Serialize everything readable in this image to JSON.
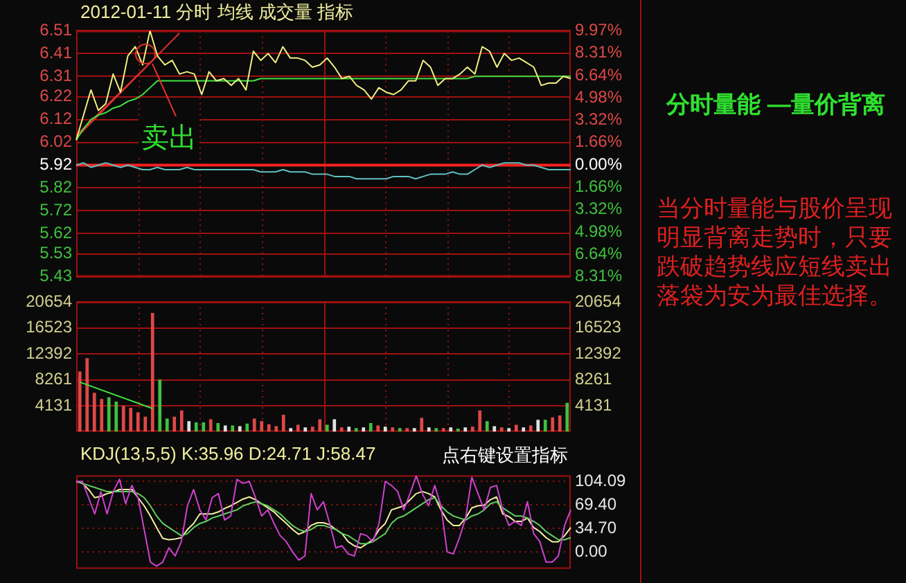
{
  "chart_data": [
    {
      "type": "line",
      "title": "2012-01-11 分时 均线 成交量 指标",
      "categories": [
        null,
        null,
        null,
        null,
        null,
        null,
        null,
        null,
        null,
        null,
        null,
        null,
        null,
        null,
        null,
        null,
        null,
        null,
        null,
        null,
        null,
        null,
        null,
        null,
        null,
        null,
        null,
        null,
        null,
        null,
        null,
        null,
        null,
        null,
        null,
        null,
        null,
        null,
        null,
        null,
        null,
        null,
        null,
        null,
        null,
        null,
        null,
        null,
        null,
        null,
        null,
        null,
        null,
        null,
        null,
        null,
        null,
        null,
        null,
        null,
        null,
        null,
        null,
        null,
        null,
        null,
        null,
        null
      ],
      "series": [
        {
          "color": "#f0f080",
          "values": [
            6.03,
            6.14,
            6.25,
            6.16,
            6.19,
            6.32,
            6.24,
            6.4,
            6.44,
            6.36,
            6.51,
            6.4,
            6.36,
            6.38,
            6.32,
            6.33,
            6.32,
            6.23,
            6.33,
            6.29,
            6.3,
            6.27,
            6.3,
            6.25,
            6.42,
            6.38,
            6.41,
            6.37,
            6.44,
            6.39,
            6.39,
            6.38,
            6.35,
            6.36,
            6.39,
            6.35,
            6.3,
            6.31,
            6.27,
            6.25,
            6.21,
            6.26,
            6.24,
            6.23,
            6.25,
            6.29,
            6.29,
            6.38,
            6.35,
            6.27,
            6.3,
            6.3,
            6.32,
            6.35,
            6.32,
            6.44,
            6.42,
            6.35,
            6.41,
            6.38,
            6.39,
            6.37,
            6.35,
            6.27,
            6.28,
            6.28,
            6.31,
            6.3
          ]
        },
        {
          "color": "#40e040",
          "values": [
            6.03,
            6.08,
            6.12,
            6.14,
            6.15,
            6.17,
            6.18,
            6.2,
            6.21,
            6.23,
            6.26,
            6.29,
            6.29,
            6.29,
            6.29,
            6.29,
            6.29,
            6.29,
            6.29,
            6.29,
            6.29,
            6.29,
            6.29,
            6.29,
            6.29,
            6.3,
            6.3,
            6.3,
            6.3,
            6.3,
            6.3,
            6.3,
            6.3,
            6.3,
            6.3,
            6.3,
            6.3,
            6.3,
            6.3,
            6.3,
            6.3,
            6.3,
            6.3,
            6.3,
            6.3,
            6.3,
            6.3,
            6.3,
            6.3,
            6.3,
            6.3,
            6.3,
            6.3,
            6.3,
            6.31,
            6.31,
            6.31,
            6.31,
            6.31,
            6.31,
            6.31,
            6.31,
            6.31,
            6.31,
            6.31,
            6.31,
            6.31,
            6.31
          ]
        },
        {
          "color": "#60c0c0",
          "values": [
            5.92,
            5.93,
            5.91,
            5.92,
            5.93,
            5.92,
            5.91,
            5.92,
            5.91,
            5.9,
            5.9,
            5.91,
            5.9,
            5.9,
            5.9,
            5.91,
            5.9,
            5.9,
            5.9,
            5.9,
            5.9,
            5.9,
            5.9,
            5.9,
            5.9,
            5.89,
            5.89,
            5.89,
            5.9,
            5.89,
            5.89,
            5.89,
            5.88,
            5.88,
            5.88,
            5.87,
            5.87,
            5.87,
            5.86,
            5.86,
            5.86,
            5.86,
            5.86,
            5.87,
            5.87,
            5.87,
            5.86,
            5.87,
            5.88,
            5.88,
            5.88,
            5.89,
            5.88,
            5.88,
            5.9,
            5.92,
            5.91,
            5.92,
            5.93,
            5.93,
            5.93,
            5.92,
            5.92,
            5.91,
            5.9,
            5.9,
            5.9,
            5.9
          ]
        },
        {
          "color": "#e03030",
          "values": [
            6.04,
            null,
            null,
            null,
            null,
            null,
            null,
            null,
            null,
            null,
            null,
            null,
            null,
            null,
            6.5,
            null,
            null,
            null,
            null,
            null,
            null,
            null,
            null,
            null,
            null,
            null,
            null,
            null,
            null,
            null,
            null,
            null,
            null,
            null,
            null,
            null,
            null,
            null,
            null,
            null,
            null,
            null,
            null,
            null,
            null,
            null,
            null,
            null,
            null,
            null,
            null,
            null,
            null,
            null,
            null,
            null,
            null,
            null,
            null,
            null,
            null,
            null,
            null,
            null,
            null,
            null,
            null,
            null
          ]
        },
        {
          "color": "#e03030",
          "values": [
            6.05,
            null,
            null,
            null,
            null,
            null,
            null,
            null,
            null,
            null,
            null,
            6.4,
            null,
            null,
            null,
            null,
            null,
            null,
            null,
            null,
            null,
            null,
            null,
            null,
            null,
            null,
            null,
            null,
            null,
            null,
            null,
            null,
            null,
            null,
            null,
            null,
            null,
            null,
            null,
            null,
            null,
            null,
            null,
            null,
            null,
            null,
            null,
            null,
            null,
            null,
            null,
            null,
            null,
            null,
            null,
            null,
            null,
            null,
            null,
            null,
            null,
            null,
            null,
            null,
            null,
            null,
            null,
            null
          ]
        }
      ],
      "ylim": [
        5.43,
        6.51
      ],
      "yticks": [
        6.51,
        6.41,
        6.31,
        6.22,
        6.12,
        6.02,
        5.92,
        5.82,
        5.72,
        5.62,
        5.53,
        5.43
      ],
      "y2lim": [
        -8.31,
        9.97
      ],
      "y2ticks": [
        {
          "value": 9.97,
          "label": "9.97%"
        },
        {
          "value": 8.31,
          "label": "8.31%"
        },
        {
          "value": 6.64,
          "label": "6.64%"
        },
        {
          "value": 4.98,
          "label": "4.98%"
        },
        {
          "value": 3.32,
          "label": "3.32%"
        },
        {
          "value": 1.66,
          "label": "1.66%"
        },
        {
          "value": 0,
          "label": "0.00%"
        },
        {
          "value": -1.66,
          "label": "1.66%"
        },
        {
          "value": -3.32,
          "label": "3.32%"
        },
        {
          "value": -4.98,
          "label": "4.98%"
        },
        {
          "value": -6.64,
          "label": "6.64%"
        },
        {
          "value": -8.31,
          "label": "8.31%"
        }
      ],
      "grid": true,
      "ref_lines": [
        {
          "axis": "y",
          "value": 5.92,
          "color": "#ff2020"
        }
      ],
      "annotations": [
        "卖出"
      ]
    },
    {
      "type": "bar",
      "categories": [
        null,
        null,
        null,
        null,
        null,
        null,
        null,
        null,
        null,
        null,
        null,
        null,
        null,
        null,
        null,
        null,
        null,
        null,
        null,
        null,
        null,
        null,
        null,
        null,
        null,
        null,
        null,
        null,
        null,
        null,
        null,
        null,
        null,
        null,
        null,
        null,
        null,
        null,
        null,
        null,
        null,
        null,
        null,
        null,
        null,
        null,
        null,
        null,
        null,
        null,
        null,
        null,
        null,
        null,
        null,
        null,
        null,
        null,
        null,
        null,
        null,
        null,
        null,
        null,
        null,
        null,
        null,
        null
      ],
      "series": [
        {
          "type": "bar",
          "values": [
            9600,
            11700,
            6200,
            5200,
            5500,
            4800,
            4100,
            3800,
            3100,
            2400,
            18900,
            8300,
            2100,
            2400,
            3400,
            1700,
            1500,
            1500,
            2000,
            1400,
            1000,
            1000,
            900,
            1300,
            2100,
            1700,
            1200,
            900,
            2700,
            600,
            1100,
            700,
            800,
            2000,
            1100,
            2000,
            700,
            800,
            600,
            700,
            1400,
            1000,
            800,
            700,
            600,
            600,
            600,
            2200,
            700,
            600,
            600,
            700,
            500,
            700,
            800,
            3400,
            1700,
            900,
            700,
            600,
            1100,
            700,
            1000,
            1900,
            1900,
            2300,
            2600,
            4600
          ],
          "colors": [
            "#e04848",
            "#e04848",
            "#e04848",
            "#e04848",
            "#40c040",
            "#40c040",
            "#e04848",
            "#e04848",
            "#e04848",
            "#e04848",
            "#e04848",
            "#40c040",
            "#40c040",
            "#e04848",
            "#e04848",
            "#e0e0e0",
            "#40c040",
            "#40c040",
            "#e04848",
            "#40c040",
            "#e0e0e0",
            "#40c040",
            "#e0e0e0",
            "#40c040",
            "#e04848",
            "#e04848",
            "#e04848",
            "#e04848",
            "#e04848",
            "#e0e0e0",
            "#e04848",
            "#e0e0e0",
            "#e04848",
            "#e04848",
            "#40c040",
            "#e0e0e0",
            "#e04848",
            "#e0e0e0",
            "#40c040",
            "#e0e0e0",
            "#40c040",
            "#e04848",
            "#e0e0e0",
            "#e04848",
            "#40c040",
            "#e04848",
            "#e0e0e0",
            "#e04848",
            "#e0e0e0",
            "#40c040",
            "#e04848",
            "#e0e0e0",
            "#40c040",
            "#e0e0e0",
            "#e04848",
            "#e04848",
            "#40c040",
            "#e0e0e0",
            "#e04848",
            "#e0e0e0",
            "#e04848",
            "#e0e0e0",
            "#e04848",
            "#e0e0e0",
            "#40c040",
            "#e04848",
            "#e04848",
            "#40c040"
          ]
        },
        {
          "type": "line",
          "color": "#40e040",
          "values": [
            7900,
            null,
            null,
            null,
            null,
            null,
            null,
            null,
            null,
            null,
            3700,
            null,
            null,
            null,
            null,
            null,
            null,
            null,
            null,
            null,
            null,
            null,
            null,
            null,
            null,
            null,
            null,
            null,
            null,
            null,
            null,
            null,
            null,
            null,
            null,
            null,
            null,
            null,
            null,
            null,
            null,
            null,
            null,
            null,
            null,
            null,
            null,
            null,
            null,
            null,
            null,
            null,
            null,
            null,
            null,
            null,
            null,
            null,
            null,
            null,
            null,
            null,
            null,
            null,
            null,
            null,
            null,
            null
          ]
        }
      ],
      "ylim": [
        0,
        20654
      ],
      "yticks": [
        4131,
        8261,
        12392,
        16523,
        20654
      ],
      "y2lim": [
        0,
        20654
      ],
      "y2ticks": [
        4131,
        8261,
        12392,
        16523,
        20654
      ],
      "grid": true
    },
    {
      "type": "line",
      "title": "KDJ(13,5,5)  K:35.96  D:24.71  J:58.47",
      "annotations": [
        "点右键设置指标"
      ],
      "categories": [
        null,
        null,
        null,
        null,
        null,
        null,
        null,
        null,
        null,
        null,
        null,
        null,
        null,
        null,
        null,
        null,
        null,
        null,
        null,
        null,
        null,
        null,
        null,
        null,
        null,
        null,
        null,
        null,
        null,
        null,
        null,
        null,
        null,
        null,
        null,
        null,
        null,
        null,
        null,
        null,
        null,
        null,
        null,
        null,
        null,
        null,
        null,
        null,
        null,
        null,
        null,
        null,
        null,
        null,
        null,
        null,
        null,
        null,
        null,
        null,
        null,
        null,
        null,
        null,
        null,
        null,
        null,
        null,
        null,
        null,
        null,
        null,
        null,
        null,
        null,
        null,
        null,
        null,
        null,
        null,
        null
      ],
      "series": [
        {
          "color": "#d040d0",
          "values": [
            104,
            104,
            80,
            56,
            89,
            56,
            89,
            107,
            71,
            98,
            80,
            33,
            -15,
            -21,
            -15,
            6,
            -6,
            15,
            68,
            92,
            62,
            47,
            80,
            86,
            47,
            53,
            107,
            101,
            104,
            80,
            53,
            62,
            42,
            24,
            15,
            0,
            -12,
            -6,
            86,
            62,
            74,
            42,
            6,
            9,
            -3,
            -6,
            27,
            24,
            15,
            42,
            104,
            98,
            89,
            62,
            86,
            112,
            86,
            68,
            98,
            68,
            0,
            -3,
            21,
            50,
            110,
            86,
            62,
            95,
            98,
            62,
            39,
            45,
            39,
            74,
            27,
            15,
            -15,
            -15,
            -6,
            39,
            62
          ]
        },
        {
          "color": "#60d060",
          "values": [
            104,
            101,
            98,
            95,
            92,
            89,
            89,
            89,
            89,
            89,
            86,
            80,
            68,
            53,
            42,
            36,
            30,
            24,
            27,
            36,
            42,
            45,
            50,
            53,
            56,
            59,
            62,
            68,
            71,
            74,
            71,
            68,
            62,
            56,
            47,
            39,
            33,
            30,
            33,
            39,
            39,
            36,
            33,
            27,
            24,
            18,
            12,
            12,
            15,
            21,
            27,
            42,
            50,
            53,
            59,
            65,
            71,
            77,
            80,
            68,
            59,
            53,
            50,
            47,
            53,
            56,
            62,
            71,
            74,
            65,
            59,
            53,
            53,
            50,
            45,
            39,
            30,
            24,
            18,
            18,
            21
          ]
        },
        {
          "color": "#f0f0a0",
          "values": [
            104,
            101,
            92,
            80,
            82,
            86,
            88,
            92,
            92,
            92,
            80,
            68,
            53,
            36,
            20,
            18,
            19,
            21,
            33,
            42,
            56,
            56,
            56,
            59,
            64,
            68,
            73,
            78,
            81,
            77,
            71,
            65,
            59,
            50,
            42,
            33,
            26,
            30,
            39,
            43,
            43,
            40,
            33,
            27,
            15,
            9,
            6,
            12,
            18,
            33,
            42,
            62,
            65,
            68,
            77,
            86,
            89,
            86,
            81,
            62,
            47,
            39,
            39,
            50,
            65,
            68,
            69,
            77,
            81,
            56,
            52,
            45,
            45,
            50,
            36,
            30,
            21,
            15,
            15,
            24,
            36
          ]
        }
      ],
      "ylim": [
        -25,
        113
      ],
      "yticks": [
        {
          "value": 104.09,
          "label": "104.09"
        },
        {
          "value": 69.4,
          "label": "69.40"
        },
        {
          "value": 34.7,
          "label": "34.70"
        },
        {
          "value": 0,
          "label": "0.00"
        }
      ],
      "grid": "y"
    },
    {
      "type": "other",
      "title": "分时量能 —量价背离",
      "annotations": [
        "当分时量能与股价呈现明显背离走势时，只要跌破趋势线应短线卖出落袋为安为最佳选择。"
      ]
    }
  ]
}
